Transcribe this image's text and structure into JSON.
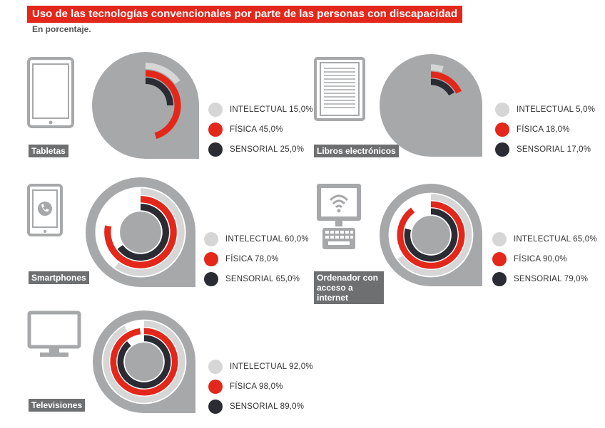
{
  "header": {
    "title": "Uso de las tecnologías convencionales por parte de las personas con discapacidad",
    "subtitle": "En porcentaje."
  },
  "colors": {
    "intelectual": "#d6d6d6",
    "fisica": "#e3271b",
    "sensorial": "#2b2c33",
    "blob": "#a7a8aa",
    "device": "#a7a8aa",
    "accent": "#e3271b"
  },
  "chart_data": [
    {
      "type": "radial-bar",
      "category": "Tabletas",
      "icon": "tablet-icon",
      "series": [
        {
          "name": "INTELECTUAL",
          "value": 15.0,
          "label": "15,0%"
        },
        {
          "name": "FÍSICA",
          "value": 45.0,
          "label": "45,0%"
        },
        {
          "name": "SENSORIAL",
          "value": 25.0,
          "label": "25,0%"
        }
      ]
    },
    {
      "type": "radial-bar",
      "category": "Libros electrónicos",
      "icon": "ereader-icon",
      "series": [
        {
          "name": "INTELECTUAL",
          "value": 5.0,
          "label": "5,0%"
        },
        {
          "name": "FÍSICA",
          "value": 18.0,
          "label": "18,0%"
        },
        {
          "name": "SENSORIAL",
          "value": 17.0,
          "label": "17,0%"
        }
      ]
    },
    {
      "type": "radial-bar",
      "category": "Smartphones",
      "icon": "smartphone-icon",
      "series": [
        {
          "name": "INTELECTUAL",
          "value": 60.0,
          "label": "60,0%"
        },
        {
          "name": "FÍSICA",
          "value": 78.0,
          "label": "78,0%"
        },
        {
          "name": "SENSORIAL",
          "value": 65.0,
          "label": "65,0%"
        }
      ]
    },
    {
      "type": "radial-bar",
      "category": "Ordenador con acceso a internet",
      "icon": "computer-icon",
      "series": [
        {
          "name": "INTELECTUAL",
          "value": 65.0,
          "label": "65,0%"
        },
        {
          "name": "FÍSICA",
          "value": 90.0,
          "label": "90,0%"
        },
        {
          "name": "SENSORIAL",
          "value": 79.0,
          "label": "79,0%"
        }
      ]
    },
    {
      "type": "radial-bar",
      "category": "Televisiones",
      "icon": "television-icon",
      "series": [
        {
          "name": "INTELECTUAL",
          "value": 92.0,
          "label": "92,0%"
        },
        {
          "name": "FÍSICA",
          "value": 98.0,
          "label": "98,0%"
        },
        {
          "name": "SENSORIAL",
          "value": 89.0,
          "label": "89,0%"
        }
      ]
    }
  ]
}
